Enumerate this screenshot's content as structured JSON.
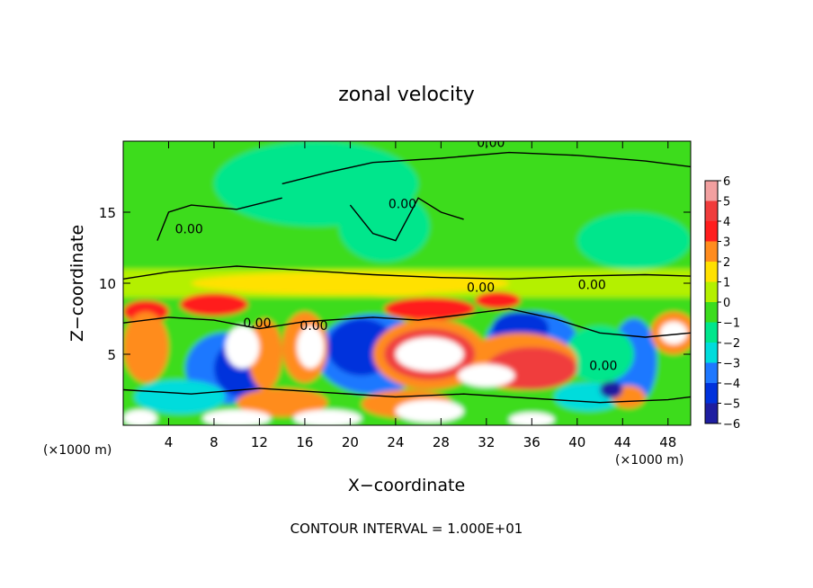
{
  "chart_data": {
    "type": "heatmap",
    "title": "zonal velocity",
    "xlabel": "X−coordinate",
    "ylabel": "Z−coordinate",
    "x_unit_left": "(×1000 m)",
    "x_unit_right": "(×1000 m)",
    "footer": "CONTOUR INTERVAL = 1.000E+01",
    "xlim": [
      0,
      50
    ],
    "ylim": [
      0,
      20
    ],
    "x_ticks": [
      4,
      8,
      12,
      16,
      20,
      24,
      28,
      32,
      36,
      40,
      44,
      48
    ],
    "y_ticks": [
      5,
      10,
      15
    ],
    "x_tick_labels": [
      "4",
      "8",
      "12",
      "16",
      "20",
      "24",
      "28",
      "32",
      "36",
      "40",
      "44",
      "48"
    ],
    "y_tick_labels": [
      "5",
      "10",
      "15"
    ],
    "colorbar": {
      "levels": [
        6,
        5,
        4,
        3,
        2,
        1,
        0,
        -1,
        -2,
        -3,
        -4,
        -5,
        -6
      ],
      "labels": [
        "6",
        "5",
        "4",
        "3",
        "2",
        "1",
        "0",
        "−1",
        "−2",
        "−3",
        "−4",
        "−5",
        "−6"
      ],
      "colors": [
        "#f2a0a0",
        "#f03c3c",
        "#ff1e1e",
        "#ff8c1e",
        "#ffe100",
        "#b4f000",
        "#3cdc1e",
        "#00e68c",
        "#00dcdc",
        "#1e78ff",
        "#0032dc",
        "#1e1ea0",
        "#8c1e8c"
      ]
    },
    "contour_labels": [
      {
        "text": "0.00",
        "x": 32.4,
        "y": 19.6
      },
      {
        "text": "0.00",
        "x": 24.6,
        "y": 15.3
      },
      {
        "text": "0.00",
        "x": 5.8,
        "y": 13.5
      },
      {
        "text": "0.00",
        "x": 31.5,
        "y": 9.4
      },
      {
        "text": "0.00",
        "x": 41.3,
        "y": 9.6
      },
      {
        "text": "0.00",
        "x": 11.8,
        "y": 6.9
      },
      {
        "text": "0.00",
        "x": 16.8,
        "y": 6.7
      },
      {
        "text": "0.00",
        "x": 42.3,
        "y": 3.9
      }
    ],
    "features": [
      {
        "type": "band",
        "value": 0,
        "x0": 0,
        "x1": 50,
        "y0": 11,
        "y1": 20
      },
      {
        "type": "band",
        "value": 1,
        "x0": 0,
        "x1": 50,
        "y0": 9,
        "y1": 11
      },
      {
        "type": "blob",
        "value": -1,
        "cx": 17,
        "cy": 17,
        "rx": 9,
        "ry": 3
      },
      {
        "type": "blob",
        "value": -1,
        "cx": 23,
        "cy": 14,
        "rx": 4,
        "ry": 2.5
      },
      {
        "type": "blob",
        "value": -1,
        "cx": 45,
        "cy": 13,
        "rx": 5,
        "ry": 2
      },
      {
        "type": "blob",
        "value": 2,
        "cx": 20,
        "cy": 10,
        "rx": 14,
        "ry": 0.8
      },
      {
        "type": "blob",
        "value": 2,
        "cx": 24,
        "cy": 9.8,
        "rx": 4,
        "ry": 0.7
      },
      {
        "type": "blob",
        "value": 4,
        "cx": 2,
        "cy": 8,
        "rx": 2,
        "ry": 0.8
      },
      {
        "type": "blob",
        "value": 4,
        "cx": 8,
        "cy": 8.5,
        "rx": 3,
        "ry": 0.8
      },
      {
        "type": "blob",
        "value": 4,
        "cx": 27,
        "cy": 8.2,
        "rx": 4,
        "ry": 0.8
      },
      {
        "type": "blob",
        "value": 4,
        "cx": 33,
        "cy": 8.8,
        "rx": 2,
        "ry": 0.6
      },
      {
        "type": "blob",
        "value": -3,
        "cx": 9,
        "cy": 4,
        "rx": 3.5,
        "ry": 2.5
      },
      {
        "type": "blob",
        "value": -4,
        "cx": 10.5,
        "cy": 4,
        "rx": 2.5,
        "ry": 2
      },
      {
        "type": "blob",
        "value": -3,
        "cx": 22,
        "cy": 5,
        "rx": 5,
        "ry": 2.8
      },
      {
        "type": "blob",
        "value": -4,
        "cx": 21,
        "cy": 5.5,
        "rx": 3,
        "ry": 2
      },
      {
        "type": "blob",
        "value": -3,
        "cx": 36,
        "cy": 6,
        "rx": 4,
        "ry": 2
      },
      {
        "type": "blob",
        "value": -4,
        "cx": 35,
        "cy": 6.8,
        "rx": 2.5,
        "ry": 1.2
      },
      {
        "type": "blob",
        "value": -3,
        "cx": 45,
        "cy": 4.5,
        "rx": 2,
        "ry": 3
      },
      {
        "type": "blob",
        "value": -1,
        "cx": 42,
        "cy": 5,
        "rx": 3,
        "ry": 2
      },
      {
        "type": "blob",
        "value": 3,
        "cx": 2,
        "cy": 5.5,
        "rx": 2,
        "ry": 2.5
      },
      {
        "type": "blob",
        "value": 3,
        "cx": 12.5,
        "cy": 5,
        "rx": 1.5,
        "ry": 2.5
      },
      {
        "type": "blob",
        "value": 3,
        "cx": 16,
        "cy": 5.5,
        "rx": 2,
        "ry": 2.5
      },
      {
        "type": "blob",
        "value": 3,
        "cx": 27,
        "cy": 5,
        "rx": 5,
        "ry": 2.5
      },
      {
        "type": "blob",
        "value": 3,
        "cx": 35,
        "cy": 4.5,
        "rx": 5,
        "ry": 2
      },
      {
        "type": "blob",
        "value": 3,
        "cx": 48.5,
        "cy": 6.5,
        "rx": 2,
        "ry": 1.5
      },
      {
        "type": "blob",
        "value": 5,
        "cx": 27,
        "cy": 5,
        "rx": 4,
        "ry": 1.8
      },
      {
        "type": "blob",
        "value": 5,
        "cx": 36,
        "cy": 4,
        "rx": 4,
        "ry": 1.5
      },
      {
        "type": "blob",
        "value": 6,
        "cx": 10.5,
        "cy": 5.5,
        "rx": 1.5,
        "ry": 1.5
      },
      {
        "type": "blob",
        "value": 6,
        "cx": 16.5,
        "cy": 5.5,
        "rx": 1.2,
        "ry": 1.5
      },
      {
        "type": "blob",
        "value": 6,
        "cx": 27,
        "cy": 5,
        "rx": 3,
        "ry": 1.2
      },
      {
        "type": "blob",
        "value": 6,
        "cx": 32,
        "cy": 3.5,
        "rx": 2.5,
        "ry": 0.8
      },
      {
        "type": "blob",
        "value": 6,
        "cx": 48.5,
        "cy": 6.5,
        "rx": 1.2,
        "ry": 0.8
      },
      {
        "type": "blob",
        "value": -2,
        "cx": 5,
        "cy": 2,
        "rx": 4,
        "ry": 1.2
      },
      {
        "type": "blob",
        "value": -2,
        "cx": 41,
        "cy": 2,
        "rx": 3,
        "ry": 1
      },
      {
        "type": "blob",
        "value": 3,
        "cx": 14,
        "cy": 1.6,
        "rx": 4,
        "ry": 1
      },
      {
        "type": "blob",
        "value": 3,
        "cx": 25,
        "cy": 1.5,
        "rx": 4,
        "ry": 1
      },
      {
        "type": "blob",
        "value": 3,
        "cx": 44.5,
        "cy": 2,
        "rx": 1.5,
        "ry": 0.8
      },
      {
        "type": "blob",
        "value": -5,
        "cx": 43,
        "cy": 2.5,
        "rx": 1,
        "ry": 0.6
      },
      {
        "type": "blob",
        "value": 6,
        "cx": 1.5,
        "cy": 0.5,
        "rx": 1.5,
        "ry": 0.6
      },
      {
        "type": "blob",
        "value": 6,
        "cx": 10,
        "cy": 0.5,
        "rx": 3,
        "ry": 0.6
      },
      {
        "type": "blob",
        "value": 6,
        "cx": 18,
        "cy": 0.5,
        "rx": 3,
        "ry": 0.6
      },
      {
        "type": "blob",
        "value": 6,
        "cx": 27,
        "cy": 1,
        "rx": 3,
        "ry": 0.8
      },
      {
        "type": "blob",
        "value": 6,
        "cx": 36,
        "cy": 0.4,
        "rx": 2,
        "ry": 0.5
      }
    ]
  }
}
